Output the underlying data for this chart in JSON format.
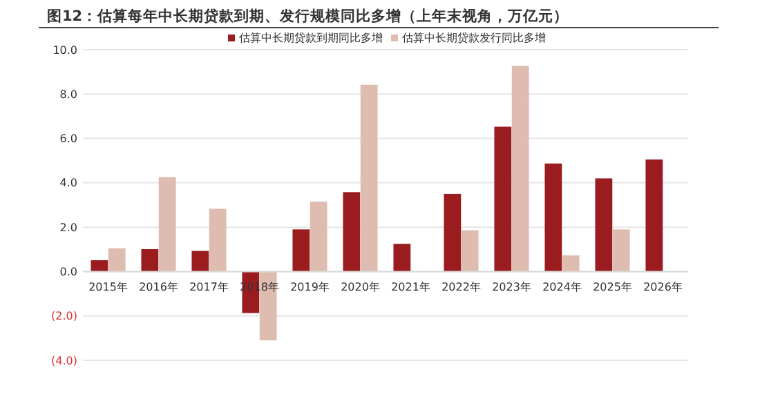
{
  "chart_data": {
    "type": "bar",
    "title": "图12：估算每年中长期贷款到期、发行规模同比多增（上年末视角，万亿元）",
    "categories": [
      "2015年",
      "2016年",
      "2017年",
      "2018年",
      "2019年",
      "2020年",
      "2021年",
      "2022年",
      "2023年",
      "2024年",
      "2025年",
      "2026年"
    ],
    "series": [
      {
        "name": "估算中长期贷款到期同比多增",
        "color": "#9b1c1f",
        "values": [
          0.51,
          1.01,
          0.93,
          -1.87,
          1.9,
          3.58,
          1.25,
          3.5,
          6.53,
          4.87,
          4.2,
          5.05
        ]
      },
      {
        "name": "估算中长期贷款发行同比多增",
        "color": "#dfbcb0",
        "values": [
          1.05,
          4.26,
          2.83,
          -3.1,
          3.15,
          8.42,
          null,
          1.86,
          9.27,
          0.73,
          1.9,
          null
        ]
      }
    ],
    "ylim": [
      -4,
      10
    ],
    "yticks": [
      {
        "value": -4,
        "label": "(4.0)"
      },
      {
        "value": -2,
        "label": "(2.0)"
      },
      {
        "value": 0,
        "label": "0.0"
      },
      {
        "value": 2,
        "label": "2.0"
      },
      {
        "value": 4,
        "label": "4.0"
      },
      {
        "value": 6,
        "label": "6.0"
      },
      {
        "value": 8,
        "label": "8.0"
      },
      {
        "value": 10,
        "label": "10.0"
      }
    ],
    "grid": "y",
    "legend": "top"
  }
}
